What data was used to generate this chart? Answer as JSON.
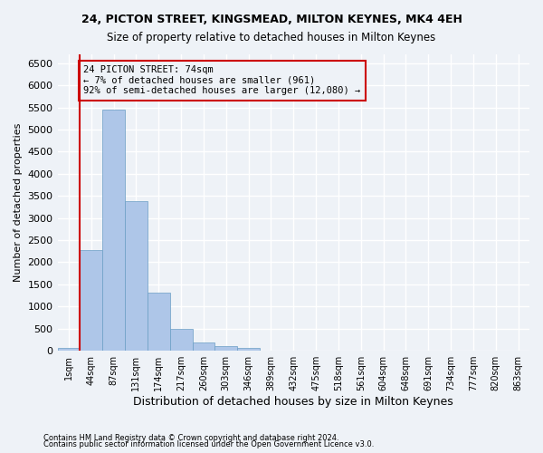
{
  "title1": "24, PICTON STREET, KINGSMEAD, MILTON KEYNES, MK4 4EH",
  "title2": "Size of property relative to detached houses in Milton Keynes",
  "xlabel": "Distribution of detached houses by size in Milton Keynes",
  "ylabel": "Number of detached properties",
  "footnote1": "Contains HM Land Registry data © Crown copyright and database right 2024.",
  "footnote2": "Contains public sector information licensed under the Open Government Licence v3.0.",
  "bin_labels": [
    "1sqm",
    "44sqm",
    "87sqm",
    "131sqm",
    "174sqm",
    "217sqm",
    "260sqm",
    "303sqm",
    "346sqm",
    "389sqm",
    "432sqm",
    "475sqm",
    "518sqm",
    "561sqm",
    "604sqm",
    "648sqm",
    "691sqm",
    "734sqm",
    "777sqm",
    "820sqm",
    "863sqm"
  ],
  "bar_values": [
    70,
    2280,
    5450,
    3390,
    1310,
    490,
    195,
    110,
    65,
    0,
    0,
    0,
    0,
    0,
    0,
    0,
    0,
    0,
    0,
    0,
    0
  ],
  "bar_color": "#aec6e8",
  "bar_edge_color": "#6a9ec5",
  "property_label": "24 PICTON STREET: 74sqm",
  "annotation_line1": "← 7% of detached houses are smaller (961)",
  "annotation_line2": "92% of semi-detached houses are larger (12,080) →",
  "vline_color": "#cc0000",
  "box_edge_color": "#cc0000",
  "ylim": [
    0,
    6700
  ],
  "yticks": [
    0,
    500,
    1000,
    1500,
    2000,
    2500,
    3000,
    3500,
    4000,
    4500,
    5000,
    5500,
    6000,
    6500
  ],
  "bg_color": "#eef2f7",
  "grid_color": "#ffffff"
}
